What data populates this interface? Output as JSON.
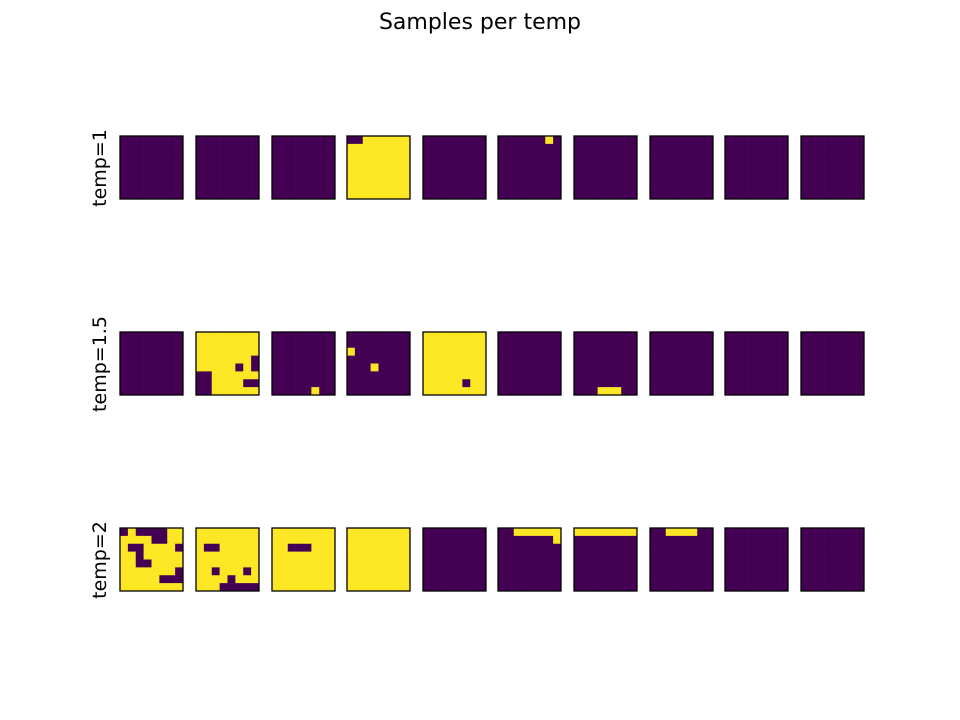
{
  "chart_data": {
    "type": "heatmap",
    "title": "Samples per temp",
    "colors": {
      "0": "#440154",
      "1": "#fde725"
    },
    "rows": [
      {
        "label": "temp=1",
        "samples": [
          [
            "00000000",
            "00000000",
            "00000000",
            "00000000",
            "00000000",
            "00000000",
            "00000000",
            "00000000"
          ],
          [
            "00000000",
            "00000000",
            "00000000",
            "00000000",
            "00000000",
            "00000000",
            "00000000",
            "00000000"
          ],
          [
            "00000000",
            "00000000",
            "00000000",
            "00000000",
            "00000000",
            "00000000",
            "00000000",
            "00000000"
          ],
          [
            "00111111",
            "11111111",
            "11111111",
            "11111111",
            "11111111",
            "11111111",
            "11111111",
            "11111111"
          ],
          [
            "00000000",
            "00000000",
            "00000000",
            "00000000",
            "00000000",
            "00000000",
            "00000000",
            "00000000"
          ],
          [
            "00000010",
            "00000000",
            "00000000",
            "00000000",
            "00000000",
            "00000000",
            "00000000",
            "00000000"
          ],
          [
            "00000000",
            "00000000",
            "00000000",
            "00000000",
            "00000000",
            "00000000",
            "00000000",
            "00000000"
          ],
          [
            "00000000",
            "00000000",
            "00000000",
            "00000000",
            "00000000",
            "00000000",
            "00000000",
            "00000000"
          ],
          [
            "00000000",
            "00000000",
            "00000000",
            "00000000",
            "00000000",
            "00000000",
            "00000000",
            "00000000"
          ],
          [
            "00000000",
            "00000000",
            "00000000",
            "00000000",
            "00000000",
            "00000000",
            "00000000",
            "00000000"
          ]
        ]
      },
      {
        "label": "temp=1.5",
        "samples": [
          [
            "00000000",
            "00000000",
            "00000000",
            "00000000",
            "00000000",
            "00000000",
            "00000000",
            "00000000"
          ],
          [
            "11111111",
            "11111111",
            "11111111",
            "11111110",
            "11111010",
            "00111111",
            "00111100",
            "00111111"
          ],
          [
            "00000000",
            "00000000",
            "00000000",
            "00000000",
            "00000000",
            "00000000",
            "00000000",
            "00000100"
          ],
          [
            "00000000",
            "00000000",
            "10000000",
            "00000000",
            "00010000",
            "00000000",
            "00000000",
            "00000000"
          ],
          [
            "11111111",
            "11111111",
            "11111111",
            "11111111",
            "11111111",
            "11111111",
            "11111011",
            "11111111"
          ],
          [
            "00000000",
            "00000000",
            "00000000",
            "00000000",
            "00000000",
            "00000000",
            "00000000",
            "00000000"
          ],
          [
            "00000000",
            "00000000",
            "00000000",
            "00000000",
            "00000000",
            "00000000",
            "00000000",
            "00011100"
          ],
          [
            "00000000",
            "00000000",
            "00000000",
            "00000000",
            "00000000",
            "00000000",
            "00000000",
            "00000000"
          ],
          [
            "00000000",
            "00000000",
            "00000000",
            "00000000",
            "00000000",
            "00000000",
            "00000000",
            "00000000"
          ],
          [
            "00000000",
            "00000000",
            "00000000",
            "00000000",
            "00000000",
            "00000000",
            "00000000",
            "00000000"
          ]
        ]
      },
      {
        "label": "temp=2",
        "samples": [
          [
            "01000011",
            "11110011",
            "10011110",
            "11011111",
            "11001111",
            "11111110",
            "11111000",
            "11111111"
          ],
          [
            "11111111",
            "11111111",
            "10011111",
            "11111111",
            "11111111",
            "11011101",
            "11110111",
            "11100000"
          ],
          [
            "11111111",
            "11111111",
            "11000111",
            "11111111",
            "11111111",
            "11111111",
            "11111111",
            "11111111"
          ],
          [
            "11111111",
            "11111111",
            "11111111",
            "11111111",
            "11111111",
            "11111111",
            "11111111",
            "11111111"
          ],
          [
            "00000000",
            "00000000",
            "00000000",
            "00000000",
            "00000000",
            "00000000",
            "00000000",
            "00000000"
          ],
          [
            "00111111",
            "00000001",
            "00000000",
            "00000000",
            "00000000",
            "00000000",
            "00000000",
            "00000000"
          ],
          [
            "11111111",
            "00000000",
            "00000000",
            "00000000",
            "00000000",
            "00000000",
            "00000000",
            "00000000"
          ],
          [
            "00111100",
            "00000000",
            "00000000",
            "00000000",
            "00000000",
            "00000000",
            "00000000",
            "00000000"
          ],
          [
            "00000000",
            "00000000",
            "00000000",
            "00000000",
            "00000000",
            "00000000",
            "00000000",
            "00000000"
          ],
          [
            "00000000",
            "00000000",
            "00000000",
            "00000000",
            "00000000",
            "00000000",
            "00000000",
            "00000000"
          ]
        ]
      }
    ]
  }
}
